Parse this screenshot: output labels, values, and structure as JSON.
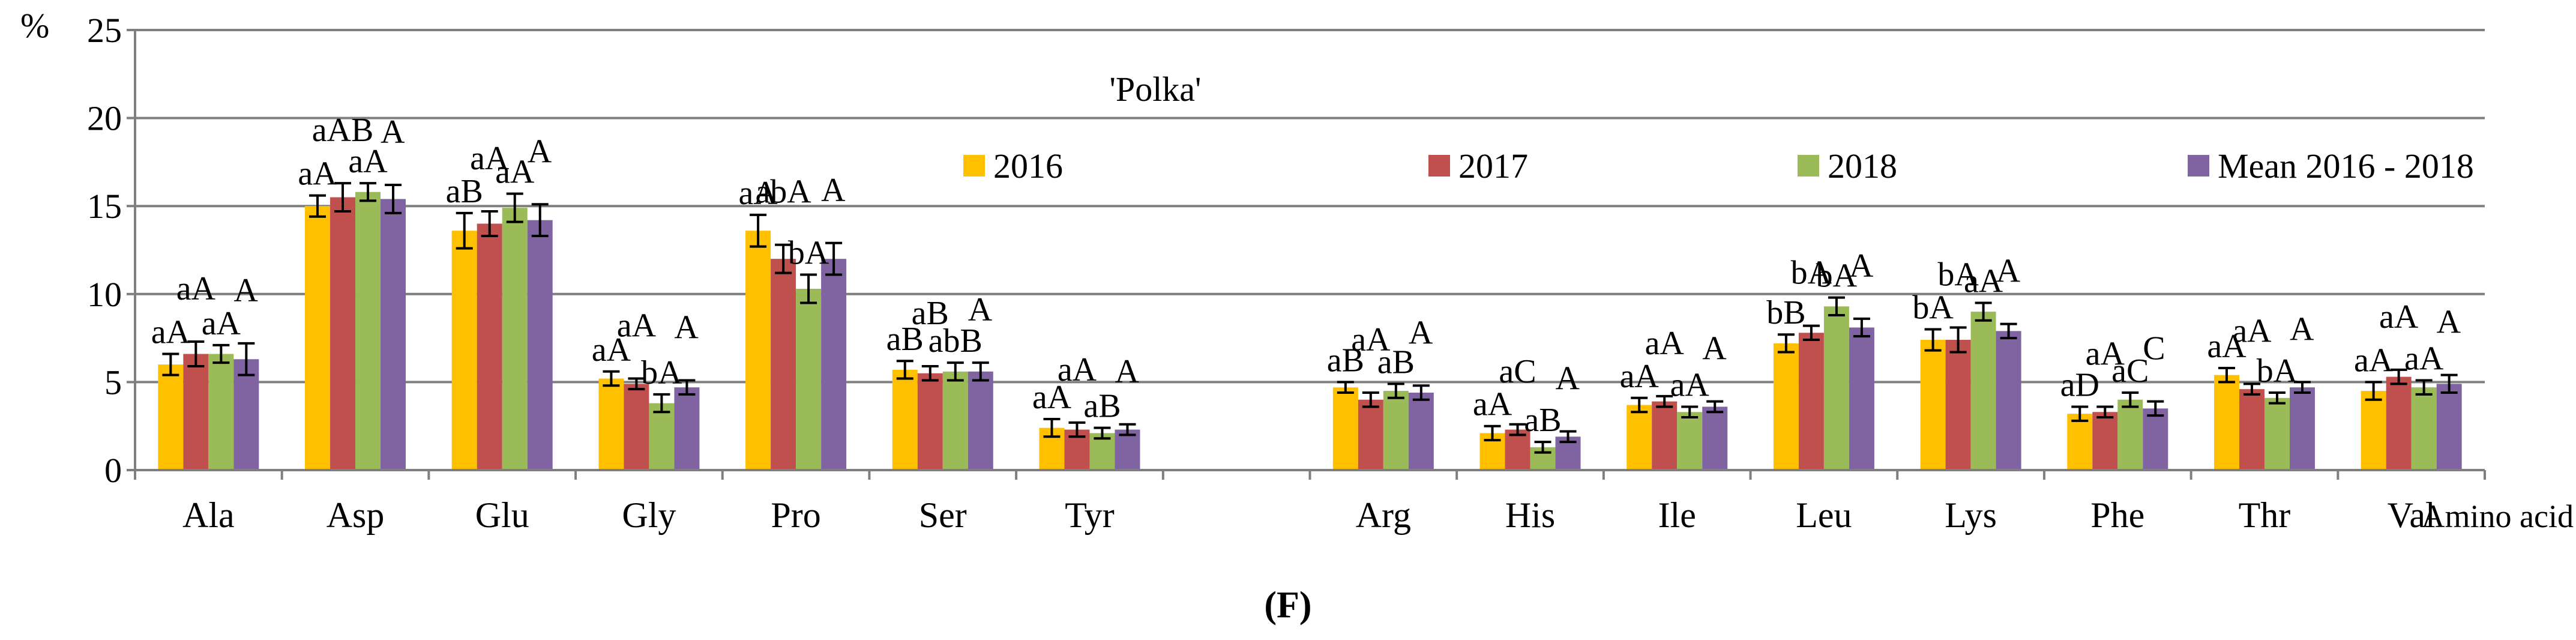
{
  "chart_data": {
    "type": "bar",
    "title": "'Polka'",
    "panel_label": "(F)",
    "ylabel": "%",
    "xlabel": "Amino acid",
    "ylim": [
      0,
      25
    ],
    "yticks": [
      0,
      5,
      10,
      15,
      20,
      25
    ],
    "grid": true,
    "legend_position": "top",
    "categories": [
      "Ala",
      "Asp",
      "Glu",
      "Gly",
      "Pro",
      "Ser",
      "Tyr",
      "",
      "Arg",
      "His",
      "Ile",
      "Leu",
      "Lys",
      "Phe",
      "Thr",
      "Val"
    ],
    "series": [
      {
        "name": "2016",
        "color": "#FFC000",
        "values": [
          6.0,
          15.0,
          13.6,
          5.2,
          13.6,
          5.7,
          2.4,
          null,
          4.7,
          2.1,
          3.7,
          7.2,
          7.4,
          3.2,
          5.4,
          4.5
        ],
        "errors": [
          0.6,
          0.6,
          1.0,
          0.4,
          0.9,
          0.5,
          0.5,
          null,
          0.3,
          0.4,
          0.4,
          0.5,
          0.6,
          0.4,
          0.4,
          0.5
        ],
        "labels": [
          "aA",
          "aA",
          "aB",
          "aA",
          "aA",
          "aB",
          "aA",
          "",
          "aB",
          "aA",
          "aA",
          "bB",
          "bA",
          "aD",
          "aA",
          "aA"
        ]
      },
      {
        "name": "2017",
        "color": "#C0504D",
        "values": [
          6.6,
          15.5,
          14.0,
          4.9,
          12.0,
          5.5,
          2.3,
          null,
          4.0,
          2.3,
          3.9,
          7.8,
          7.4,
          3.3,
          4.6,
          5.3
        ],
        "errors": [
          0.7,
          0.8,
          0.7,
          0.3,
          0.8,
          0.4,
          0.4,
          null,
          0.4,
          0.3,
          0.3,
          0.4,
          0.7,
          0.3,
          0.3,
          0.4
        ],
        "labels": [
          "aA",
          "aAB",
          "aA",
          "aA",
          "abA",
          "aB",
          "aA",
          "",
          "aA",
          "aC",
          "aA",
          "bA",
          "bA",
          "aA",
          "aA",
          "aA"
        ]
      },
      {
        "name": "2018",
        "color": "#9BBB59",
        "values": [
          6.6,
          15.8,
          14.9,
          3.8,
          10.3,
          5.6,
          2.1,
          null,
          4.5,
          1.3,
          3.3,
          9.3,
          9.0,
          4.0,
          4.1,
          4.7
        ],
        "errors": [
          0.5,
          0.5,
          0.8,
          0.5,
          0.8,
          0.5,
          0.3,
          null,
          0.4,
          0.3,
          0.3,
          0.5,
          0.5,
          0.4,
          0.3,
          0.4
        ],
        "labels": [
          "aA",
          "aA",
          "aA",
          "bA",
          "bA",
          "abB",
          "aB",
          "",
          "aB",
          "aB",
          "aA",
          "bA",
          "aA",
          "aC",
          "bA",
          "aA"
        ]
      },
      {
        "name": "Mean 2016 - 2018",
        "color": "#8064A2",
        "values": [
          6.3,
          15.4,
          14.2,
          4.7,
          12.0,
          5.6,
          2.3,
          null,
          4.4,
          1.9,
          3.6,
          8.1,
          7.9,
          3.5,
          4.7,
          4.9
        ],
        "errors": [
          0.9,
          0.8,
          0.9,
          0.4,
          0.9,
          0.5,
          0.3,
          null,
          0.4,
          0.3,
          0.3,
          0.5,
          0.4,
          0.4,
          0.3,
          0.5
        ],
        "labels": [
          "A",
          "A",
          "A",
          "A",
          "A",
          "A",
          "A",
          "",
          "A",
          "A",
          "A",
          "A",
          "A",
          "C",
          "A",
          "A"
        ]
      }
    ]
  }
}
